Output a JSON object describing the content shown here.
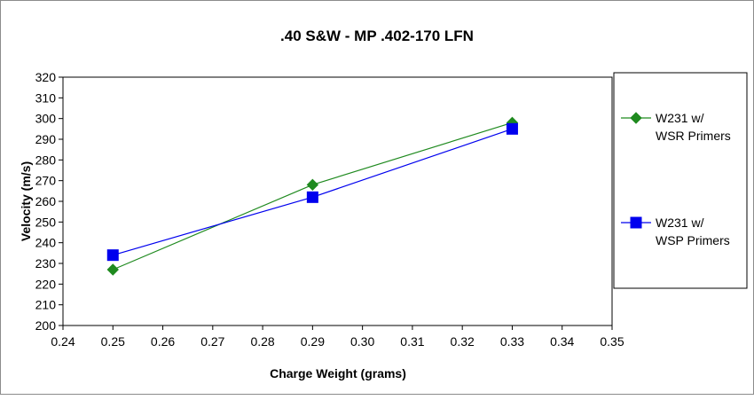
{
  "chart_data": {
    "type": "line",
    "title": ".40 S&W - MP .402-170 LFN",
    "xlabel": "Charge Weight (grams)",
    "ylabel": "Velocity (m/s)",
    "xlim": [
      0.24,
      0.35
    ],
    "ylim": [
      200,
      320
    ],
    "xticks": [
      "0.24",
      "0.25",
      "0.26",
      "0.27",
      "0.28",
      "0.29",
      "0.30",
      "0.31",
      "0.32",
      "0.33",
      "0.34",
      "0.35"
    ],
    "yticks": [
      "200",
      "210",
      "220",
      "230",
      "240",
      "250",
      "260",
      "270",
      "280",
      "290",
      "300",
      "310",
      "320"
    ],
    "grid": false,
    "legend_position": "right",
    "series": [
      {
        "name_lines": [
          "W231 w/",
          "WSR Primers"
        ],
        "color": "#1f8a1f",
        "marker": "diamond",
        "x": [
          0.25,
          0.29,
          0.33
        ],
        "y": [
          227,
          268,
          298
        ]
      },
      {
        "name_lines": [
          "W231 w/",
          "WSP Primers"
        ],
        "color": "#0000ee",
        "marker": "square",
        "x": [
          0.25,
          0.29,
          0.33
        ],
        "y": [
          234,
          262,
          295
        ]
      }
    ]
  }
}
